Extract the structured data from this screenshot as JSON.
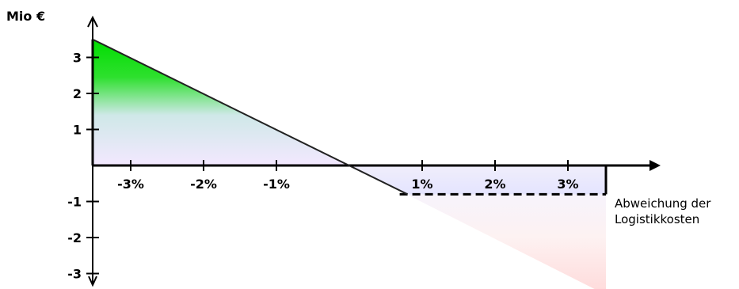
{
  "chart_data": {
    "type": "area",
    "ylabel": "Mio €",
    "xlabel_lines": [
      "Abweichung der",
      "Logistikkosten"
    ],
    "x_ticks": [
      {
        "value": -3,
        "label": "-3%"
      },
      {
        "value": -2,
        "label": "-2%"
      },
      {
        "value": -1,
        "label": "-1%"
      },
      {
        "value": 1,
        "label": "1%"
      },
      {
        "value": 2,
        "label": "2%"
      },
      {
        "value": 3,
        "label": "3%"
      }
    ],
    "y_ticks": [
      {
        "value": 3,
        "label": "3"
      },
      {
        "value": 2,
        "label": "2"
      },
      {
        "value": 1,
        "label": "1"
      },
      {
        "value": -1,
        "label": "-1"
      },
      {
        "value": -2,
        "label": "-2"
      },
      {
        "value": -3,
        "label": "-3"
      }
    ],
    "xlim": [
      -3.5,
      3.5
    ],
    "ylim": [
      -3.5,
      3.5
    ],
    "line": {
      "x": [
        -3.5,
        3.5
      ],
      "y": [
        3.5,
        -3.5
      ]
    },
    "floor_level": -0.8,
    "floor_from_x": 0.8,
    "colors": {
      "gain_top": "#00dd00",
      "gain_bottom": "#e8e8ff",
      "loss_top": "#e6e6ff",
      "loss_bottom": "#ffdede",
      "line": "#222222",
      "frame": "#000000"
    }
  }
}
